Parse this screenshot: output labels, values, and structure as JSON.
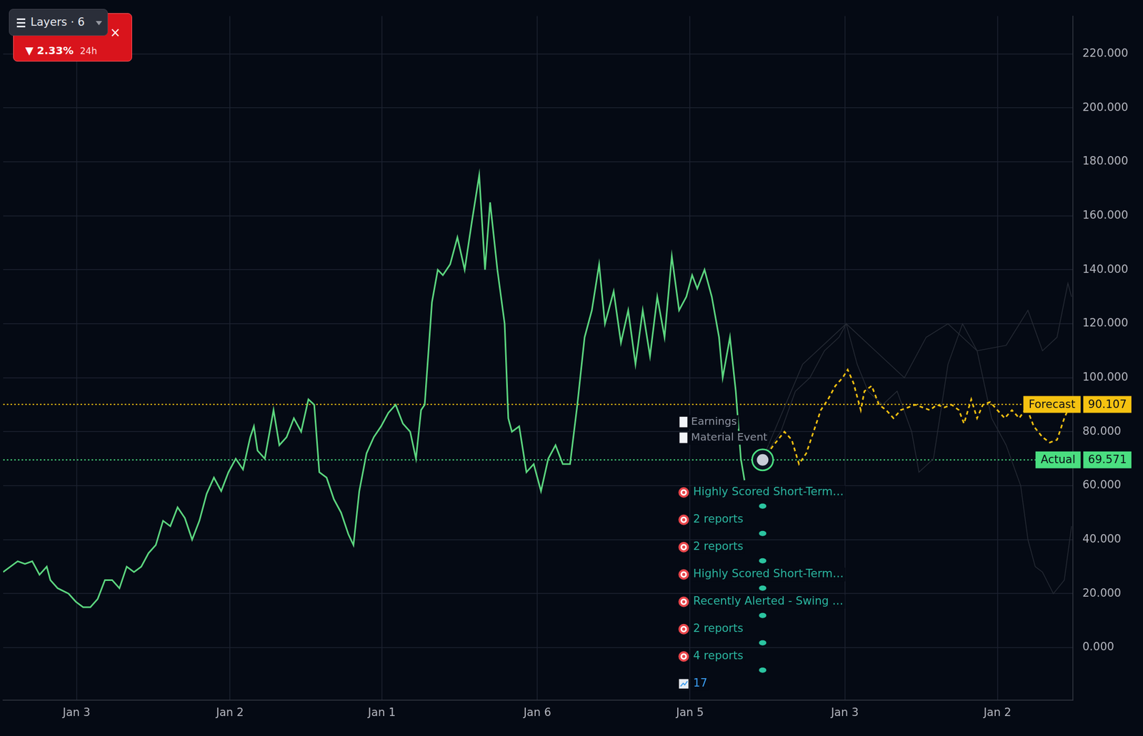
{
  "overlay": {
    "layers": "Layers · 6",
    "change": "▼ 2.33%",
    "period": "24h",
    "close": "×"
  },
  "chart_data": {
    "type": "line",
    "series": [
      {
        "name": "Actual",
        "color": "#5cd67f",
        "line_style": "solid",
        "x": [
          0,
          20,
          30,
          40,
          50,
          60,
          65,
          75,
          90,
          100,
          110,
          120,
          130,
          140,
          150,
          160,
          170,
          180,
          190,
          200,
          210,
          220,
          230,
          240,
          250,
          260,
          270,
          280,
          290,
          300,
          310,
          320,
          330,
          340,
          345,
          350,
          360,
          372,
          380,
          390,
          400,
          410,
          420,
          428,
          435,
          445,
          455,
          465,
          475,
          482,
          490,
          500,
          510,
          520,
          530,
          540,
          550,
          560,
          568,
          575,
          580,
          590,
          598,
          605,
          615,
          625,
          635,
          645,
          655,
          663,
          670,
          680,
          690,
          695,
          700,
          710,
          720,
          730,
          740,
          750,
          760,
          770,
          780,
          790,
          800,
          810,
          820,
          828,
          840,
          850,
          860,
          870,
          880,
          890,
          900,
          910,
          920,
          930,
          940,
          948,
          955,
          965,
          975,
          985,
          990,
          1000,
          1008,
          1015,
          1020
        ],
        "values": [
          28,
          32,
          31,
          32,
          27,
          30,
          25,
          22,
          20,
          17,
          15,
          15,
          18,
          25,
          25,
          22,
          30,
          28,
          30,
          35,
          38,
          47,
          45,
          52,
          48,
          40,
          47,
          57,
          63,
          58,
          65,
          70,
          66,
          78,
          82,
          73,
          70,
          88,
          75,
          78,
          85,
          80,
          92,
          90,
          65,
          63,
          55,
          50,
          42,
          38,
          58,
          72,
          78,
          82,
          87,
          90,
          83,
          80,
          70,
          88,
          90,
          128,
          140,
          138,
          142,
          152,
          140,
          158,
          175,
          140,
          165,
          140,
          120,
          85,
          80,
          82,
          65,
          68,
          58,
          70,
          75,
          68,
          68,
          90,
          115,
          125,
          142,
          120,
          132,
          113,
          125,
          105,
          125,
          108,
          130,
          115,
          145,
          125,
          130,
          138,
          133,
          140,
          130,
          115,
          100,
          115,
          95,
          70,
          62
        ]
      },
      {
        "name": "Forecast",
        "color": "#f5c211",
        "line_style": "dashed",
        "x": [
          1045,
          1060,
          1075,
          1085,
          1095,
          1105,
          1115,
          1125,
          1135,
          1145,
          1155,
          1162,
          1170,
          1180,
          1185,
          1195,
          1205,
          1215,
          1225,
          1235,
          1245,
          1255,
          1265,
          1275,
          1285,
          1295,
          1305,
          1315,
          1322,
          1332,
          1340,
          1348,
          1358,
          1368,
          1378,
          1388,
          1398,
          1408,
          1418,
          1430,
          1440,
          1450,
          1460,
          1468
        ],
        "values": [
          69.571,
          75,
          80,
          77,
          68,
          72,
          80,
          88,
          92,
          97,
          100,
          103,
          98,
          88,
          95,
          97,
          90,
          88,
          85,
          88,
          89,
          90,
          89,
          88,
          90,
          89,
          90,
          88,
          83,
          92,
          85,
          90,
          91,
          88,
          85,
          88,
          85,
          89,
          82,
          78,
          76,
          77,
          85,
          90
        ]
      },
      {
        "color": "#262b35",
        "line_style": "solid",
        "x": [
          1045,
          1070,
          1090,
          1110,
          1130,
          1150,
          1160,
          1175,
          1190,
          1210,
          1230,
          1250,
          1260,
          1280,
          1300,
          1320,
          1340,
          1360,
          1380,
          1400,
          1410,
          1420,
          1430,
          1445,
          1460,
          1470
        ],
        "values": [
          70,
          80,
          95,
          100,
          110,
          115,
          120,
          105,
          95,
          90,
          95,
          80,
          65,
          70,
          105,
          120,
          110,
          85,
          75,
          60,
          40,
          30,
          28,
          20,
          25,
          45
        ]
      },
      {
        "color": "#262b35",
        "line_style": "solid",
        "x": [
          1045,
          1100,
          1160,
          1200,
          1240,
          1270,
          1300,
          1340,
          1380,
          1410,
          1430,
          1450,
          1465,
          1470
        ],
        "values": [
          70,
          105,
          120,
          110,
          100,
          115,
          120,
          110,
          112,
          125,
          110,
          115,
          135,
          130
        ]
      }
    ],
    "xlim": [
      0,
      1472
    ],
    "xticks": [
      {
        "value": 101,
        "label": "Jan 3"
      },
      {
        "value": 312,
        "label": "Jan 2"
      },
      {
        "value": 521,
        "label": "Jan 1"
      },
      {
        "value": 735,
        "label": "Jan 6"
      },
      {
        "value": 945,
        "label": "Jan 5"
      },
      {
        "value": 1158,
        "label": "Jan 3"
      },
      {
        "value": 1368,
        "label": "Jan 2"
      }
    ],
    "ylim": [
      -19.5,
      234
    ],
    "yticks": [
      {
        "value": 0,
        "label": "0.000"
      },
      {
        "value": 20,
        "label": "20.000"
      },
      {
        "value": 40,
        "label": "40.000"
      },
      {
        "value": 60,
        "label": "60.000"
      },
      {
        "value": 80,
        "label": "80.000"
      },
      {
        "value": 100,
        "label": "100.000"
      },
      {
        "value": 120,
        "label": "120.000"
      },
      {
        "value": 140,
        "label": "140.000"
      },
      {
        "value": 160,
        "label": "160.000"
      },
      {
        "value": 180,
        "label": "180.000"
      },
      {
        "value": 200,
        "label": "200.000"
      },
      {
        "value": 220,
        "label": "220.000"
      }
    ],
    "grid": true,
    "reference_lines": [
      {
        "name": "Forecast",
        "value": 90.107,
        "label": "90.107",
        "color": "#f5c211"
      },
      {
        "name": "Actual",
        "value": 69.571,
        "label": "69.571",
        "color": "#4ade80"
      }
    ],
    "annotations": {
      "events": [
        "Material Event",
        "Earnings"
      ],
      "rows": [
        "Highly Scored Short-Term…",
        "2 reports",
        "2 reports",
        "Highly Scored Short-Term…",
        "Recently Alerted - Swing …",
        "2 reports",
        "4 reports",
        "17"
      ]
    }
  }
}
